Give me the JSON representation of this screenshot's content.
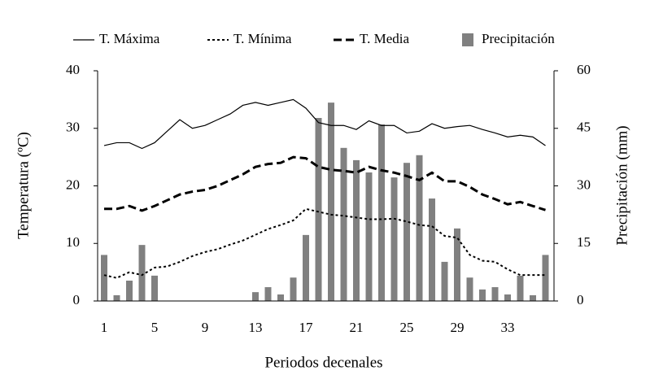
{
  "chart_data": {
    "type": "bar-line",
    "xlabel": "Periodos decenales",
    "ylabel": "Temperatura (ºC)",
    "y2label": "Precipitación (mm)",
    "categories": [
      "1",
      null,
      null,
      null,
      "5",
      null,
      null,
      null,
      "9",
      null,
      null,
      null,
      "13",
      null,
      null,
      null,
      "17",
      null,
      null,
      null,
      "21",
      null,
      null,
      null,
      "25",
      null,
      null,
      null,
      "29",
      null,
      null,
      null,
      "33",
      null,
      null,
      null
    ],
    "ylim": [
      0,
      40
    ],
    "yticks": [
      0,
      10,
      20,
      30,
      40
    ],
    "y2lim": [
      0,
      60
    ],
    "y2ticks": [
      0,
      15,
      30,
      45,
      60
    ],
    "series": [
      {
        "name": "T. Máxima",
        "type": "line",
        "style": "solid",
        "color": "#000000",
        "values": [
          27,
          27.5,
          27.5,
          26.5,
          27.5,
          29.5,
          31.5,
          30,
          30.5,
          31.5,
          32.5,
          34,
          34.5,
          34,
          34.5,
          35,
          33.5,
          31,
          30.5,
          30.5,
          29.8,
          31.3,
          30.5,
          30.5,
          29.2,
          29.5,
          30.8,
          30,
          30.3,
          30.5,
          29.8,
          29.2,
          28.5,
          28.8,
          28.5,
          27
        ]
      },
      {
        "name": "T. Mínima",
        "type": "line",
        "style": "dotted",
        "color": "#000000",
        "values": [
          4.5,
          4,
          5,
          4.5,
          5.8,
          6,
          6.8,
          7.8,
          8.5,
          9,
          9.8,
          10.5,
          11.5,
          12.5,
          13.2,
          14,
          16,
          15.5,
          15,
          14.8,
          14.5,
          14.2,
          14.2,
          14.3,
          13.8,
          13.2,
          13,
          11.3,
          11,
          8,
          7,
          6.8,
          5.5,
          4.5,
          4.5,
          4.5
        ]
      },
      {
        "name": "T. Media",
        "type": "line",
        "style": "dashed",
        "color": "#000000",
        "values": [
          16,
          16,
          16.5,
          15.7,
          16.5,
          17.5,
          18.5,
          19,
          19.3,
          20,
          21,
          22,
          23.3,
          23.8,
          24,
          25,
          24.8,
          23.3,
          22.8,
          22.6,
          22.3,
          23.3,
          22.7,
          22.3,
          21.7,
          21,
          22.3,
          20.8,
          20.8,
          19.8,
          18.5,
          17.7,
          16.8,
          17.2,
          16.5,
          15.8
        ]
      },
      {
        "name": "Precipitación",
        "type": "bar",
        "axis": "y2",
        "color": "#808080",
        "values": [
          12,
          1.5,
          5.3,
          14.6,
          6.6,
          0,
          0,
          0,
          0,
          0,
          0,
          0,
          2.3,
          3.6,
          1.7,
          6.1,
          17.2,
          47.7,
          51.7,
          39.9,
          36.7,
          33.5,
          46,
          32.2,
          36,
          38,
          26.7,
          10.2,
          18.9,
          6.1,
          3,
          3.6,
          1.7,
          6.6,
          1.5,
          12
        ]
      }
    ]
  }
}
